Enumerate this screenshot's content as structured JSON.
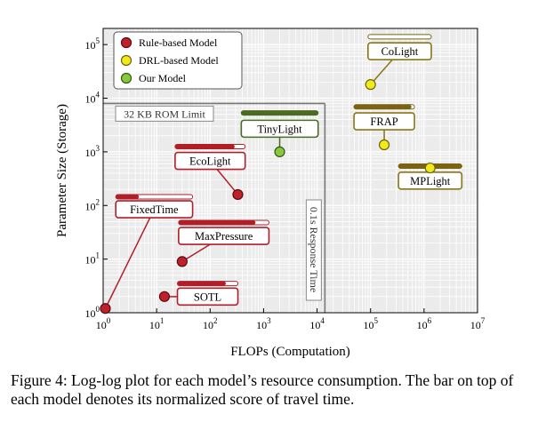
{
  "chart_data": {
    "type": "scatter",
    "xlabel": "FLOPs (Computation)",
    "ylabel": "Parameter Size (Storage)",
    "xscale": "log",
    "yscale": "log",
    "xlim": [
      1,
      10000000
    ],
    "ylim": [
      1,
      200000
    ],
    "xticks": [
      {
        "value": 1,
        "base": "10",
        "exp": "0"
      },
      {
        "value": 10,
        "base": "10",
        "exp": "1"
      },
      {
        "value": 100,
        "base": "10",
        "exp": "2"
      },
      {
        "value": 1000,
        "base": "10",
        "exp": "3"
      },
      {
        "value": 10000,
        "base": "10",
        "exp": "4"
      },
      {
        "value": 100000,
        "base": "10",
        "exp": "5"
      },
      {
        "value": 1000000,
        "base": "10",
        "exp": "6"
      },
      {
        "value": 10000000,
        "base": "10",
        "exp": "7"
      }
    ],
    "yticks": [
      {
        "value": 1,
        "base": "10",
        "exp": "0"
      },
      {
        "value": 10,
        "base": "10",
        "exp": "1"
      },
      {
        "value": 100,
        "base": "10",
        "exp": "2"
      },
      {
        "value": 1000,
        "base": "10",
        "exp": "3"
      },
      {
        "value": 10000,
        "base": "10",
        "exp": "4"
      },
      {
        "value": 100000,
        "base": "10",
        "exp": "5"
      }
    ],
    "grid": true,
    "legend_position": "top-left",
    "legend": [
      {
        "label": "Rule-based Model",
        "color": "#c0202a",
        "edge": "#5a0a10"
      },
      {
        "label": "DRL-based Model",
        "color": "#f2e91b",
        "edge": "#6b6510"
      },
      {
        "label": "Our Model",
        "color": "#8cc63f",
        "edge": "#2f5a10"
      }
    ],
    "limits": [
      {
        "label": "32 KB ROM Limit",
        "axis": "y",
        "value": 8000
      },
      {
        "label": "0.1s Response Time",
        "axis": "x",
        "value": 14000
      }
    ],
    "points": [
      {
        "name": "FixedTime",
        "category": "Rule-based Model",
        "x": 1.1,
        "y": 1.2,
        "score": 0.3,
        "label_x": 9,
        "label_y": 85,
        "bar_x": 5.5,
        "bar_y": 145
      },
      {
        "name": "SOTL",
        "category": "Rule-based Model",
        "x": 14,
        "y": 2,
        "score": 0.8,
        "label_x": 90,
        "label_y": 2,
        "bar_x": 110,
        "bar_y": 3.5
      },
      {
        "name": "MaxPressure",
        "category": "Rule-based Model",
        "x": 30,
        "y": 9,
        "score": 0.85,
        "label_x": 180,
        "label_y": 27,
        "bar_x": 180,
        "bar_y": 48
      },
      {
        "name": "EcoLight",
        "category": "Rule-based Model",
        "x": 330,
        "y": 160,
        "score": 0.85,
        "label_x": 100,
        "label_y": 680,
        "bar_x": 100,
        "bar_y": 1250
      },
      {
        "name": "TinyLight",
        "category": "Our Model",
        "x": 2000,
        "y": 1000,
        "score": 1.0,
        "label_x": 2000,
        "label_y": 2700,
        "bar_x": 2000,
        "bar_y": 5300
      },
      {
        "name": "CoLight",
        "category": "DRL-based Model",
        "x": 100000,
        "y": 18000,
        "score": 0.0,
        "label_x": 350000,
        "label_y": 75000,
        "bar_x": 350000,
        "bar_y": 140000
      },
      {
        "name": "FRAP",
        "category": "DRL-based Model",
        "x": 180000,
        "y": 1350,
        "score": 0.95,
        "label_x": 180000,
        "label_y": 3700,
        "bar_x": 180000,
        "bar_y": 6900
      },
      {
        "name": "MPLight",
        "category": "DRL-based Model",
        "x": 1300000,
        "y": 500,
        "score": 1.0,
        "label_x": 1300000,
        "label_y": 290,
        "bar_x": 1300000,
        "bar_y": 540
      }
    ]
  },
  "caption": "Figure 4: Log-log plot for each model’s resource consumption. The bar on top of each model denotes its normalized score of travel time."
}
